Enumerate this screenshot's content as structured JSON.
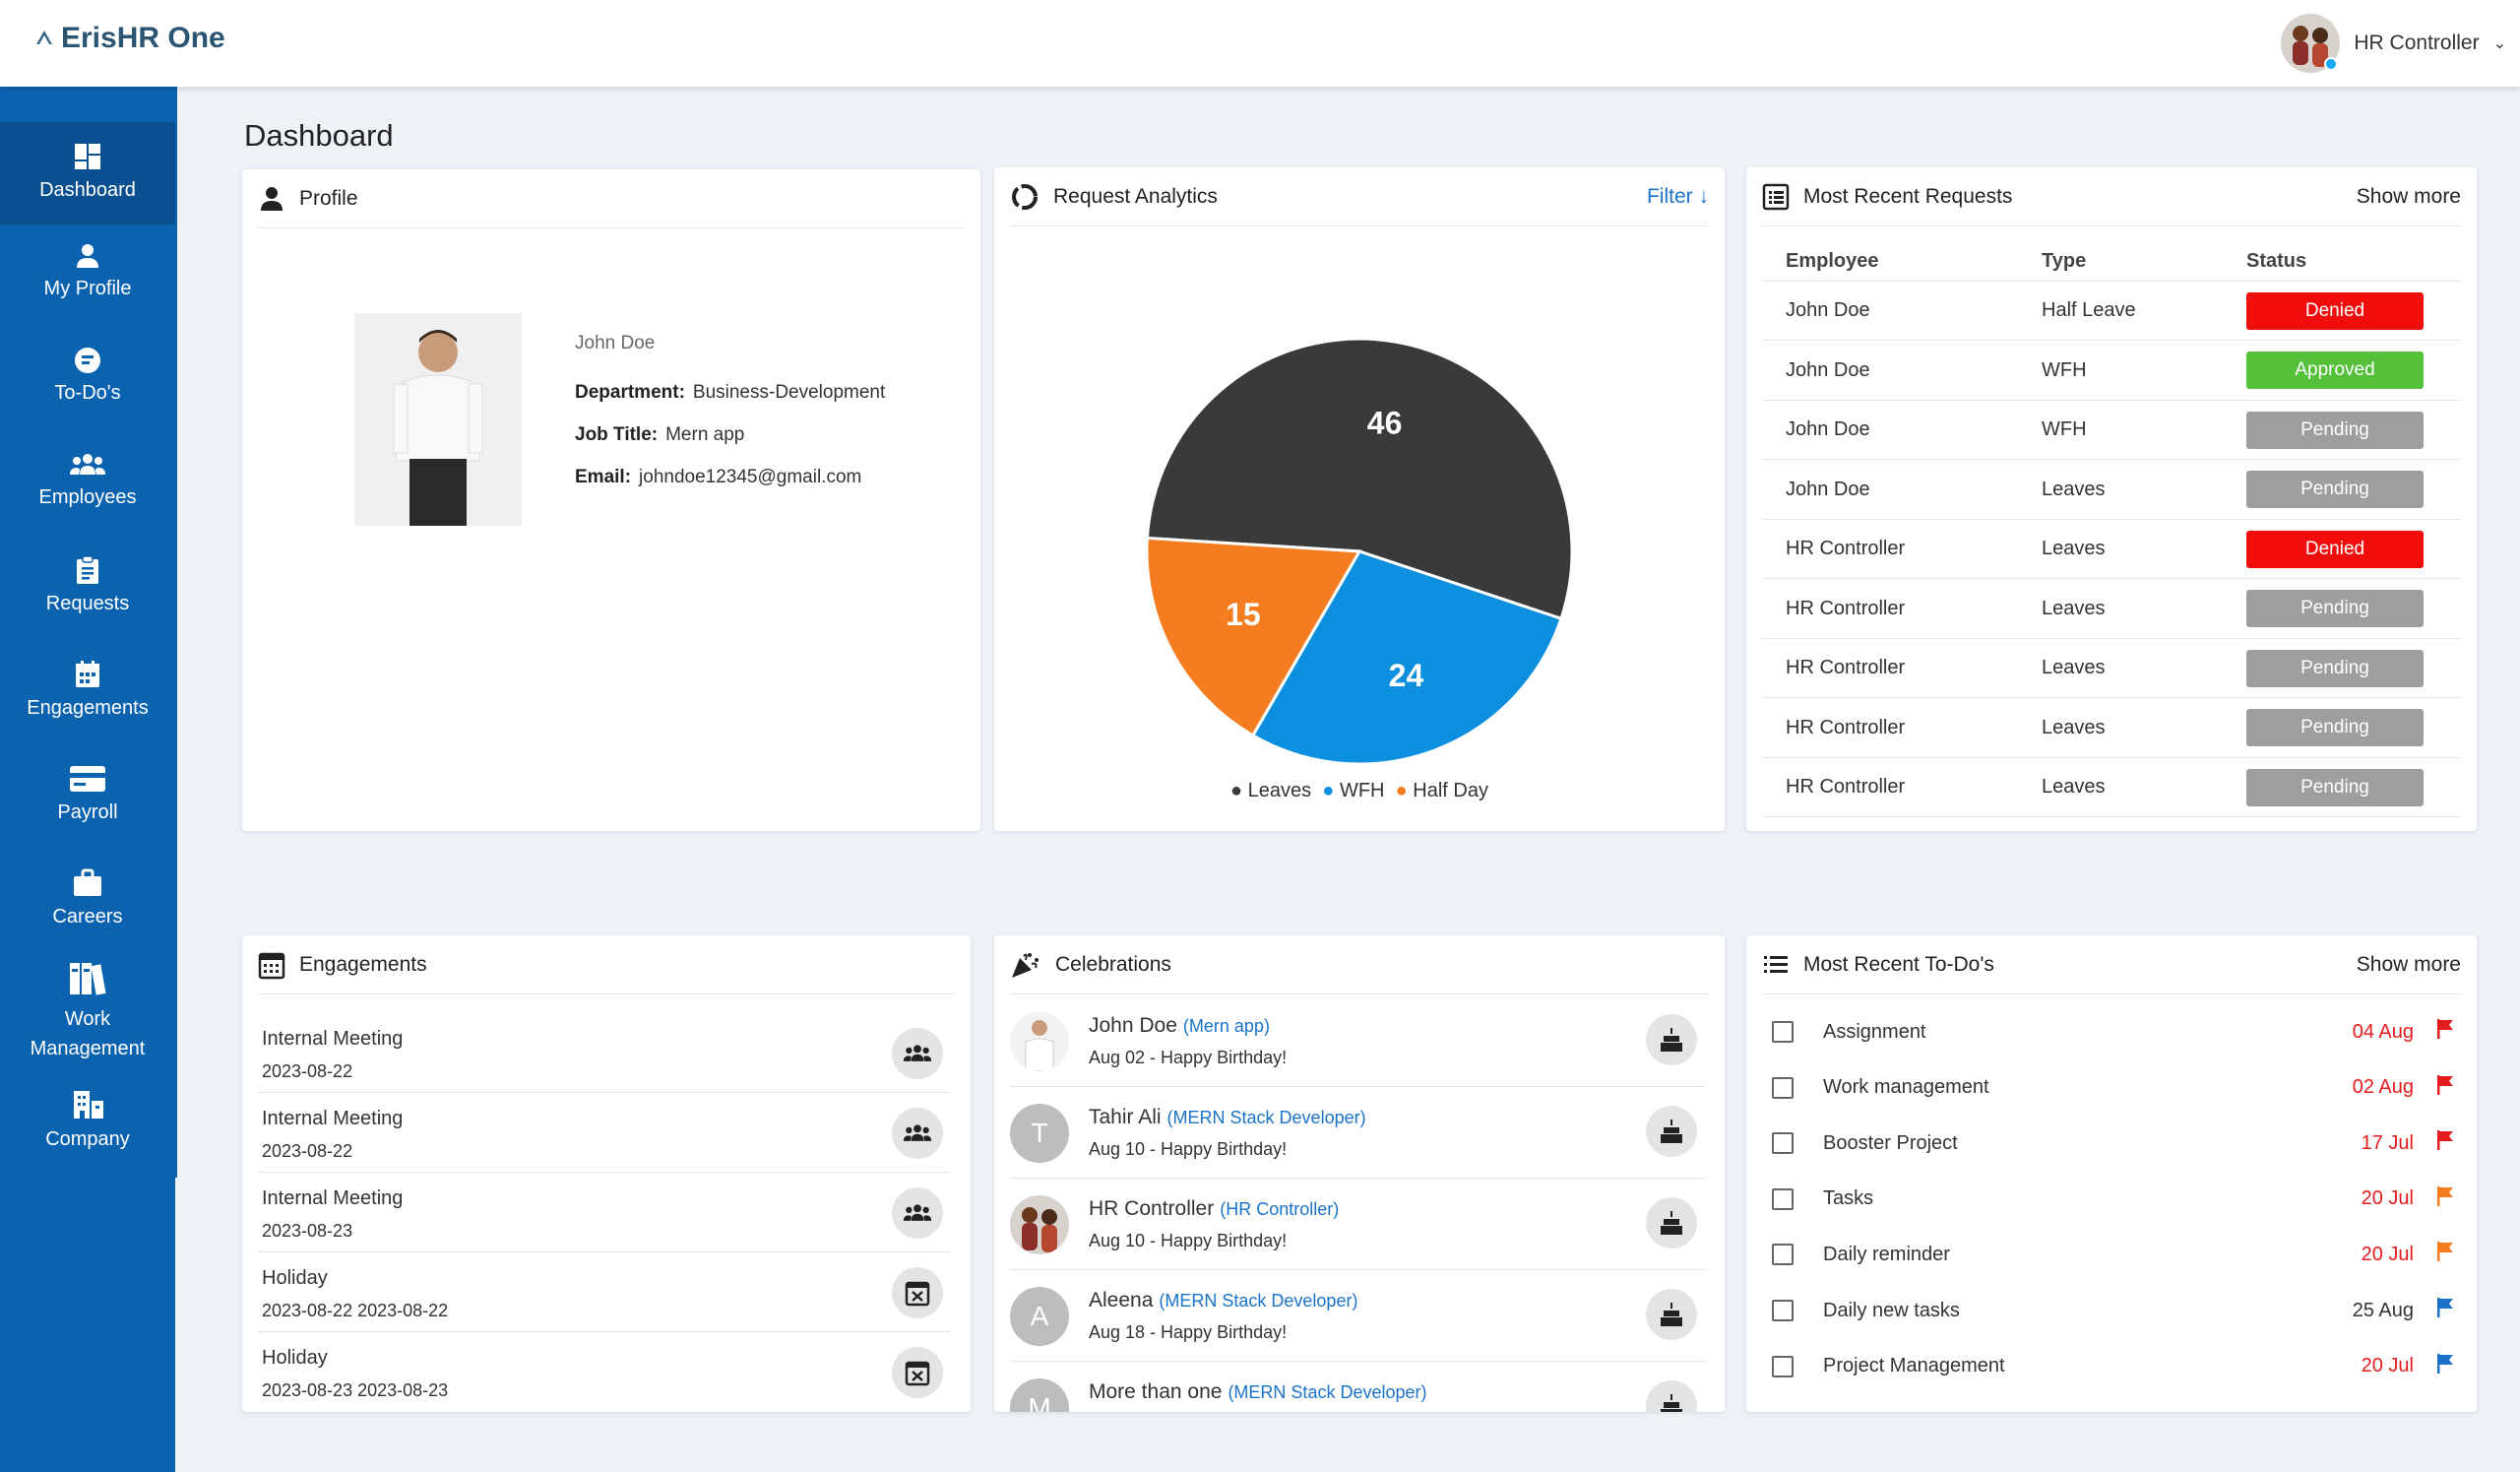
{
  "app": {
    "logo_text": "ErisHR One"
  },
  "user": {
    "name": "HR Controller"
  },
  "sidebar": {
    "items": [
      {
        "label": "Dashboard",
        "icon": "dashboard-icon"
      },
      {
        "label": "My Profile",
        "icon": "person-icon"
      },
      {
        "label": "To-Do's",
        "icon": "todo-icon"
      },
      {
        "label": "Employees",
        "icon": "group-icon"
      },
      {
        "label": "Requests",
        "icon": "clipboard-icon"
      },
      {
        "label": "Engagements",
        "icon": "calendar-icon"
      },
      {
        "label": "Payroll",
        "icon": "card-icon"
      },
      {
        "label": "Careers",
        "icon": "briefcase-icon"
      },
      {
        "label": "Work Management",
        "icon": "books-icon"
      },
      {
        "label": "Company",
        "icon": "building-icon"
      }
    ]
  },
  "page": {
    "title": "Dashboard"
  },
  "profile": {
    "title": "Profile",
    "name": "John Doe",
    "department_label": "Department:",
    "department": "Business-Development",
    "job_label": "Job Title:",
    "job": "Mern app",
    "email_label": "Email:",
    "email": "johndoe12345@gmail.com"
  },
  "analytics": {
    "title": "Request Analytics",
    "filter_label": "Filter",
    "legend": [
      "Leaves",
      "WFH",
      "Half Day"
    ]
  },
  "chart_data": {
    "type": "pie",
    "categories": [
      "Leaves",
      "WFH",
      "Half Day"
    ],
    "values": [
      46,
      24,
      15
    ],
    "colors": [
      "#3a3a3a",
      "#0d8fe0",
      "#f57c1f"
    ]
  },
  "requests": {
    "title": "Most Recent Requests",
    "show_more": "Show more",
    "headers": [
      "Employee",
      "Type",
      "Status"
    ],
    "rows": [
      {
        "employee": "John Doe",
        "type": "Half Leave",
        "status": "Denied"
      },
      {
        "employee": "John Doe",
        "type": "WFH",
        "status": "Approved"
      },
      {
        "employee": "John Doe",
        "type": "WFH",
        "status": "Pending"
      },
      {
        "employee": "John Doe",
        "type": "Leaves",
        "status": "Pending"
      },
      {
        "employee": "HR Controller",
        "type": "Leaves",
        "status": "Denied"
      },
      {
        "employee": "HR Controller",
        "type": "Leaves",
        "status": "Pending"
      },
      {
        "employee": "HR Controller",
        "type": "Leaves",
        "status": "Pending"
      },
      {
        "employee": "HR Controller",
        "type": "Leaves",
        "status": "Pending"
      },
      {
        "employee": "HR Controller",
        "type": "Leaves",
        "status": "Pending"
      }
    ],
    "status_colors": {
      "Denied": "#f20d0d",
      "Approved": "#55c039",
      "Pending": "#9e9e9e"
    }
  },
  "engagements": {
    "title": "Engagements",
    "items": [
      {
        "title": "Internal Meeting",
        "date": "2023-08-22",
        "icon": "group-icon"
      },
      {
        "title": "Internal Meeting",
        "date": "2023-08-22",
        "icon": "group-icon"
      },
      {
        "title": "Internal Meeting",
        "date": "2023-08-23",
        "icon": "group-icon"
      },
      {
        "title": "Holiday",
        "date": "2023-08-22 2023-08-22",
        "icon": "calendar-x-icon"
      },
      {
        "title": "Holiday",
        "date": "2023-08-23 2023-08-23",
        "icon": "calendar-x-icon"
      }
    ]
  },
  "celebrations": {
    "title": "Celebrations",
    "items": [
      {
        "name": "John Doe",
        "role": "(Mern app)",
        "detail": "Aug 02 - Happy Birthday!",
        "initial": ""
      },
      {
        "name": "Tahir Ali",
        "role": "(MERN Stack Developer)",
        "detail": "Aug 10 - Happy Birthday!",
        "initial": "T"
      },
      {
        "name": "HR Controller",
        "role": "(HR Controller)",
        "detail": "Aug 10 - Happy Birthday!",
        "initial": ""
      },
      {
        "name": "Aleena",
        "role": "(MERN Stack Developer)",
        "detail": "Aug 18 - Happy Birthday!",
        "initial": "A"
      },
      {
        "name": "More than one",
        "role": "(MERN Stack Developer)",
        "detail": "",
        "initial": "M"
      }
    ]
  },
  "todos": {
    "title": "Most Recent To-Do's",
    "show_more": "Show more",
    "items": [
      {
        "label": "Assignment",
        "date": "04 Aug",
        "date_color": "#e51c1c",
        "flag_color": "#e51c1c"
      },
      {
        "label": "Work management",
        "date": "02 Aug",
        "date_color": "#e51c1c",
        "flag_color": "#e51c1c"
      },
      {
        "label": "Booster Project",
        "date": "17 Jul",
        "date_color": "#e51c1c",
        "flag_color": "#e51c1c"
      },
      {
        "label": "Tasks",
        "date": "20 Jul",
        "date_color": "#e51c1c",
        "flag_color": "#f57c1f"
      },
      {
        "label": "Daily reminder",
        "date": "20 Jul",
        "date_color": "#e51c1c",
        "flag_color": "#f57c1f"
      },
      {
        "label": "Daily new tasks",
        "date": "25 Aug",
        "date_color": "#333333",
        "flag_color": "#1a73c9"
      },
      {
        "label": "Project Management",
        "date": "20 Jul",
        "date_color": "#e51c1c",
        "flag_color": "#1a73c9"
      }
    ]
  }
}
